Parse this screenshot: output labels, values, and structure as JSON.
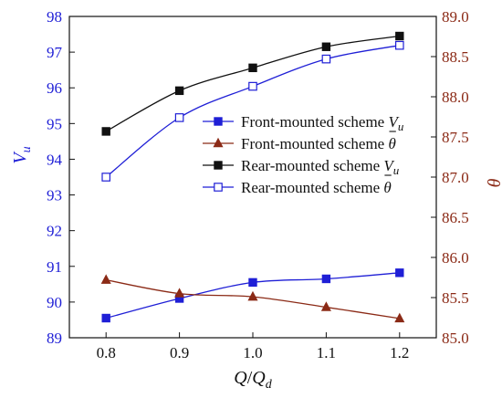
{
  "chart_data": {
    "type": "line",
    "x": [
      0.8,
      0.9,
      1.0,
      1.1,
      1.2
    ],
    "x_ticks": [
      "0.8",
      "0.9",
      "1.0",
      "1.1",
      "1.2"
    ],
    "xlim": [
      0.75,
      1.25
    ],
    "xlabel": {
      "main": "Q",
      "slash": "/",
      "main2": "Q",
      "sub": "d"
    },
    "y_left": {
      "label": {
        "main": "V",
        "sub": "u"
      },
      "range": [
        89,
        98
      ],
      "ticks": [
        "89",
        "90",
        "91",
        "92",
        "93",
        "94",
        "95",
        "96",
        "97",
        "98"
      ],
      "color": "#1f1fd6"
    },
    "y_right": {
      "label": "θ",
      "range": [
        85.0,
        89.0
      ],
      "ticks": [
        "85.0",
        "85.5",
        "86.0",
        "86.5",
        "87.0",
        "87.5",
        "88.0",
        "88.5",
        "89.0"
      ],
      "color": "#8b2a16"
    },
    "legend_position": "center-right",
    "series": [
      {
        "name": "Front-mounted scheme ",
        "symbol": "V",
        "symbol_sub": "u",
        "overline": false,
        "axis": "left",
        "marker": "square-filled",
        "color": "#1f1fd6",
        "values": [
          89.55,
          90.1,
          90.55,
          90.65,
          90.82
        ]
      },
      {
        "name": "Front-mounted scheme ",
        "symbol": "θ",
        "symbol_sub": "",
        "overline": true,
        "axis": "right",
        "marker": "triangle-filled",
        "color": "#8b2a16",
        "values": [
          85.72,
          85.55,
          85.51,
          85.38,
          85.24
        ]
      },
      {
        "name": "Rear-mounted scheme ",
        "symbol": "V",
        "symbol_sub": "u",
        "overline": false,
        "axis": "left",
        "marker": "square-filled",
        "color": "#111111",
        "values": [
          94.78,
          95.92,
          96.56,
          97.15,
          97.45
        ]
      },
      {
        "name": "Rear-mounted scheme ",
        "symbol": "θ",
        "symbol_sub": "",
        "overline": true,
        "axis": "right",
        "marker": "square-open",
        "color": "#1f1fd6",
        "values": [
          87.0,
          87.74,
          88.13,
          88.47,
          88.64
        ]
      }
    ]
  }
}
